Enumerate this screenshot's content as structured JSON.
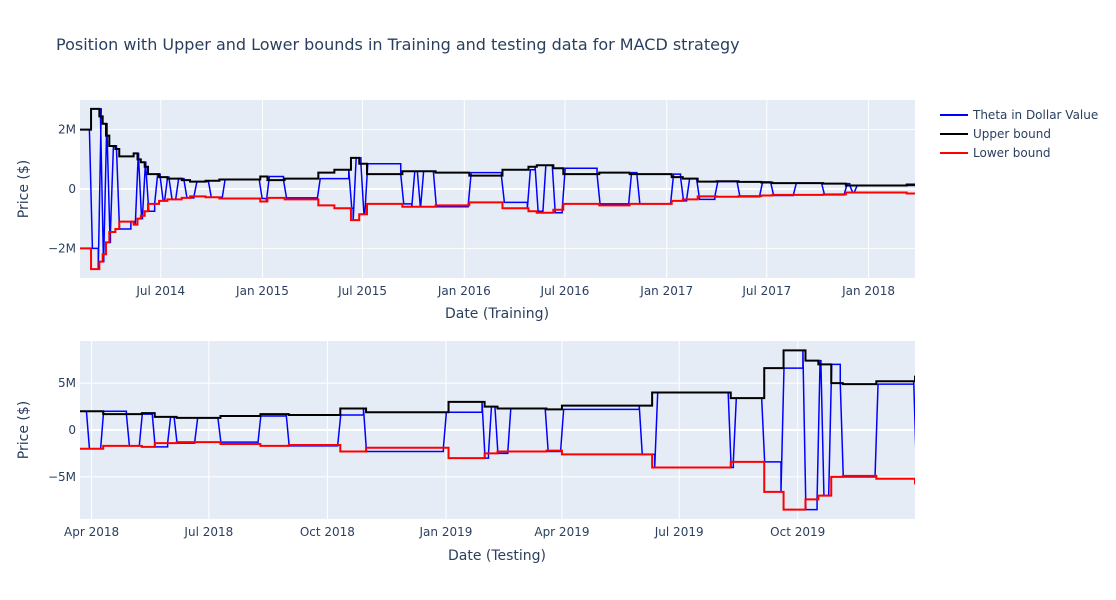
{
  "title": "Position with Upper and Lower bounds in Training and testing data for MACD strategy",
  "colors": {
    "theta": "#0000ff",
    "upper": "#000000",
    "lower": "#ff0000",
    "plot_bg": "#e5ecf6",
    "grid": "#ffffff"
  },
  "legend": [
    {
      "name": "Theta in Dollar Value",
      "color": "#0000ff"
    },
    {
      "name": "Upper bound",
      "color": "#000000"
    },
    {
      "name": "Lower bound",
      "color": "#ff0000"
    }
  ],
  "chart_data": [
    {
      "type": "line",
      "xlabel": "Date (Training)",
      "ylabel": "Price ($)",
      "xlim": [
        "2014-02-05",
        "2018-03-26"
      ],
      "ylim": [
        -3000000,
        3000000
      ],
      "xticks": [
        {
          "date": "2014-07-01",
          "label": "Jul 2014"
        },
        {
          "date": "2015-01-01",
          "label": "Jan 2015"
        },
        {
          "date": "2015-07-01",
          "label": "Jul 2015"
        },
        {
          "date": "2016-01-01",
          "label": "Jan 2016"
        },
        {
          "date": "2016-07-01",
          "label": "Jul 2016"
        },
        {
          "date": "2017-01-01",
          "label": "Jan 2017"
        },
        {
          "date": "2017-07-01",
          "label": "Jul 2017"
        },
        {
          "date": "2018-01-01",
          "label": "Jan 2018"
        }
      ],
      "yticks": [
        {
          "value": 2000000,
          "label": "2M"
        },
        {
          "value": 0,
          "label": "0"
        },
        {
          "value": -2000000,
          "label": "−2M"
        }
      ],
      "bound_segments": [
        [
          "2014-02-05",
          2000000
        ],
        [
          "2014-02-25",
          2700000
        ],
        [
          "2014-03-12",
          2450000
        ],
        [
          "2014-03-18",
          2200000
        ],
        [
          "2014-03-24",
          1800000
        ],
        [
          "2014-03-30",
          1450000
        ],
        [
          "2014-04-10",
          1350000
        ],
        [
          "2014-04-17",
          1100000
        ],
        [
          "2014-05-13",
          1200000
        ],
        [
          "2014-05-20",
          1000000
        ],
        [
          "2014-05-26",
          900000
        ],
        [
          "2014-06-02",
          750000
        ],
        [
          "2014-06-08",
          500000
        ],
        [
          "2014-06-28",
          400000
        ],
        [
          "2014-07-13",
          350000
        ],
        [
          "2014-08-08",
          300000
        ],
        [
          "2014-08-23",
          250000
        ],
        [
          "2014-09-20",
          280000
        ],
        [
          "2014-10-15",
          320000
        ],
        [
          "2014-12-28",
          420000
        ],
        [
          "2015-01-10",
          300000
        ],
        [
          "2015-02-10",
          350000
        ],
        [
          "2015-04-01",
          350000
        ],
        [
          "2015-04-12",
          550000
        ],
        [
          "2015-05-11",
          650000
        ],
        [
          "2015-06-10",
          1050000
        ],
        [
          "2015-06-25",
          850000
        ],
        [
          "2015-07-09",
          500000
        ],
        [
          "2015-09-11",
          600000
        ],
        [
          "2015-11-10",
          550000
        ],
        [
          "2016-01-10",
          450000
        ],
        [
          "2016-03-10",
          650000
        ],
        [
          "2016-04-26",
          750000
        ],
        [
          "2016-05-11",
          800000
        ],
        [
          "2016-06-10",
          700000
        ],
        [
          "2016-06-28",
          500000
        ],
        [
          "2016-09-01",
          550000
        ],
        [
          "2016-10-26",
          500000
        ],
        [
          "2016-11-10",
          500000
        ],
        [
          "2017-01-10",
          400000
        ],
        [
          "2017-01-30",
          350000
        ],
        [
          "2017-02-26",
          250000
        ],
        [
          "2017-04-01",
          260000
        ],
        [
          "2017-05-11",
          240000
        ],
        [
          "2017-06-21",
          220000
        ],
        [
          "2017-07-11",
          200000
        ],
        [
          "2017-08-21",
          200000
        ],
        [
          "2017-10-11",
          180000
        ],
        [
          "2017-11-21",
          120000
        ],
        [
          "2018-03-11",
          150000
        ],
        [
          "2018-03-26",
          150000
        ]
      ],
      "theta_dips": [
        [
          "2014-02-22",
          "-"
        ],
        [
          "2014-03-10",
          "+"
        ],
        [
          "2014-03-14",
          "-"
        ],
        [
          "2014-03-20",
          "+"
        ],
        [
          "2014-03-26",
          "-"
        ],
        [
          "2014-04-01",
          "+"
        ],
        [
          "2014-04-12",
          "-"
        ],
        [
          "2014-05-08",
          "-"
        ],
        [
          "2014-05-16",
          "+"
        ],
        [
          "2014-05-22",
          "-"
        ],
        [
          "2014-05-29",
          "+"
        ],
        [
          "2014-06-04",
          "-"
        ],
        [
          "2014-06-20",
          "+"
        ],
        [
          "2014-06-30",
          "-"
        ],
        [
          "2014-07-08",
          "+"
        ],
        [
          "2014-07-16",
          "-"
        ],
        [
          "2014-07-28",
          "+"
        ],
        [
          "2014-08-12",
          "-"
        ],
        [
          "2014-08-30",
          "+"
        ],
        [
          "2014-09-25",
          "-"
        ],
        [
          "2014-10-20",
          "+"
        ],
        [
          "2014-12-26",
          "-"
        ],
        [
          "2015-01-08",
          "+"
        ],
        [
          "2015-02-08",
          "-"
        ],
        [
          "2015-04-10",
          "+"
        ],
        [
          "2015-06-06",
          "-"
        ],
        [
          "2015-06-14",
          "+"
        ],
        [
          "2015-06-28",
          "-"
        ],
        [
          "2015-07-05",
          "+"
        ],
        [
          "2015-09-08",
          "-"
        ],
        [
          "2015-09-28",
          "+"
        ],
        [
          "2015-10-08",
          "-"
        ],
        [
          "2015-10-14",
          "+"
        ],
        [
          "2015-11-06",
          "-"
        ],
        [
          "2016-01-08",
          "+"
        ],
        [
          "2016-03-08",
          "-"
        ],
        [
          "2016-04-24",
          "+"
        ],
        [
          "2016-05-08",
          "-"
        ],
        [
          "2016-05-22",
          "+"
        ],
        [
          "2016-06-08",
          "-"
        ],
        [
          "2016-06-26",
          "+"
        ],
        [
          "2016-08-28",
          "-"
        ],
        [
          "2016-10-24",
          "+"
        ],
        [
          "2016-11-08",
          "-"
        ],
        [
          "2017-01-08",
          "+"
        ],
        [
          "2017-01-26",
          "-"
        ],
        [
          "2017-02-06",
          "+"
        ],
        [
          "2017-02-24",
          "-"
        ],
        [
          "2017-03-29",
          "+"
        ],
        [
          "2017-05-08",
          "-"
        ],
        [
          "2017-06-18",
          "+"
        ],
        [
          "2017-07-08",
          "-"
        ],
        [
          "2017-08-18",
          "+"
        ],
        [
          "2017-10-08",
          "-"
        ],
        [
          "2017-11-18",
          "+"
        ],
        [
          "2017-11-28",
          "-"
        ],
        [
          "2017-12-06",
          "+"
        ]
      ]
    },
    {
      "type": "line",
      "xlabel": "Date (Testing)",
      "ylabel": "Price ($)",
      "xlim": [
        "2018-03-23",
        "2019-12-31"
      ],
      "ylim": [
        -9500000,
        9500000
      ],
      "xticks": [
        {
          "date": "2018-04-01",
          "label": "Apr 2018"
        },
        {
          "date": "2018-07-01",
          "label": "Jul 2018"
        },
        {
          "date": "2018-10-01",
          "label": "Oct 2018"
        },
        {
          "date": "2019-01-01",
          "label": "Jan 2019"
        },
        {
          "date": "2019-04-01",
          "label": "Apr 2019"
        },
        {
          "date": "2019-07-01",
          "label": "Jul 2019"
        },
        {
          "date": "2019-10-01",
          "label": "Oct 2019"
        }
      ],
      "yticks": [
        {
          "value": 5000000,
          "label": "5M"
        },
        {
          "value": 0,
          "label": "0"
        },
        {
          "value": -5000000,
          "label": "−5M"
        }
      ],
      "bound_segments": [
        [
          "2018-03-23",
          2000000
        ],
        [
          "2018-04-10",
          1700000
        ],
        [
          "2018-05-10",
          1800000
        ],
        [
          "2018-05-20",
          1400000
        ],
        [
          "2018-06-06",
          1300000
        ],
        [
          "2018-07-10",
          1500000
        ],
        [
          "2018-08-10",
          1700000
        ],
        [
          "2018-09-01",
          1600000
        ],
        [
          "2018-10-11",
          2300000
        ],
        [
          "2018-10-31",
          1900000
        ],
        [
          "2018-12-31",
          1900000
        ],
        [
          "2019-01-03",
          3000000
        ],
        [
          "2019-01-31",
          2500000
        ],
        [
          "2019-02-10",
          2300000
        ],
        [
          "2019-03-20",
          2200000
        ],
        [
          "2019-04-01",
          2600000
        ],
        [
          "2019-06-01",
          2600000
        ],
        [
          "2019-06-10",
          4000000
        ],
        [
          "2019-08-10",
          3400000
        ],
        [
          "2019-09-05",
          6600000
        ],
        [
          "2019-09-20",
          8500000
        ],
        [
          "2019-10-07",
          7400000
        ],
        [
          "2019-10-17",
          7000000
        ],
        [
          "2019-10-27",
          5000000
        ],
        [
          "2019-11-05",
          4900000
        ],
        [
          "2019-12-01",
          5200000
        ],
        [
          "2019-12-31",
          5800000
        ]
      ],
      "theta_dips": [
        [
          "2018-03-28",
          "-"
        ],
        [
          "2018-04-08",
          "+"
        ],
        [
          "2018-04-28",
          "-"
        ],
        [
          "2018-05-08",
          "+"
        ],
        [
          "2018-05-18",
          "-"
        ],
        [
          "2018-05-30",
          "+"
        ],
        [
          "2018-06-04",
          "-"
        ],
        [
          "2018-06-20",
          "+"
        ],
        [
          "2018-07-08",
          "-"
        ],
        [
          "2018-08-08",
          "+"
        ],
        [
          "2018-08-30",
          "-"
        ],
        [
          "2018-10-09",
          "+"
        ],
        [
          "2018-10-29",
          "-"
        ],
        [
          "2018-12-30",
          "+"
        ],
        [
          "2019-01-29",
          "-"
        ],
        [
          "2019-02-03",
          "+"
        ],
        [
          "2019-02-08",
          "-"
        ],
        [
          "2019-02-18",
          "+"
        ],
        [
          "2019-03-19",
          "-"
        ],
        [
          "2019-03-31",
          "+"
        ],
        [
          "2019-05-31",
          "-"
        ],
        [
          "2019-06-12",
          "+"
        ],
        [
          "2019-08-08",
          "-"
        ],
        [
          "2019-08-12",
          "+"
        ],
        [
          "2019-09-03",
          "-"
        ],
        [
          "2019-09-18",
          "+"
        ],
        [
          "2019-10-05",
          "-"
        ],
        [
          "2019-10-16",
          "+"
        ],
        [
          "2019-10-19",
          "-"
        ],
        [
          "2019-10-25",
          "+"
        ],
        [
          "2019-11-03",
          "-"
        ],
        [
          "2019-11-30",
          "+"
        ],
        [
          "2019-12-30",
          "-"
        ]
      ]
    }
  ]
}
